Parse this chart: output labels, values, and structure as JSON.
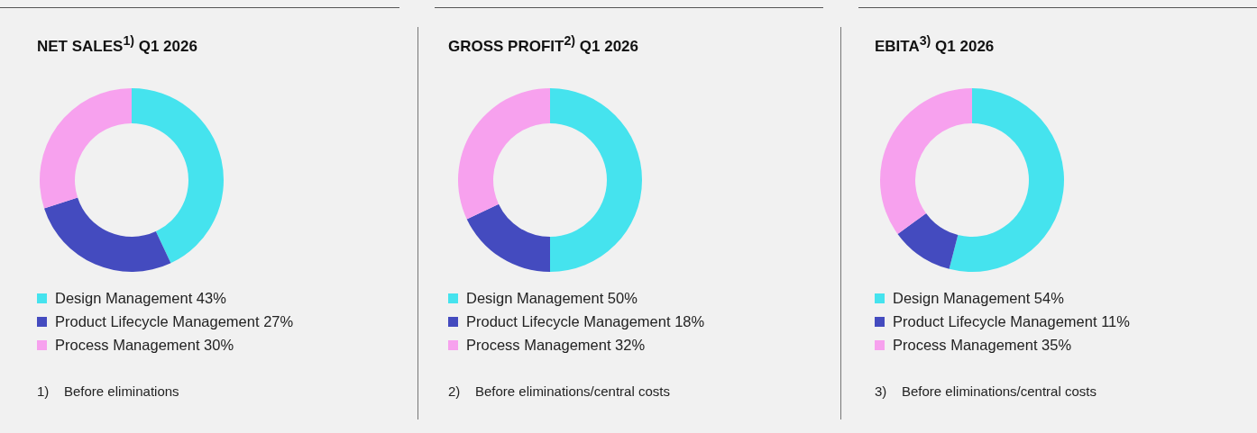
{
  "chart_data": [
    {
      "type": "donut",
      "title": "NET SALES$^{1)}$ Q1 2026",
      "categories": [
        "Design Management",
        "Product Lifecycle Management",
        "Process Management"
      ],
      "values": [
        43,
        27,
        30
      ],
      "value_labels": [
        "43%",
        "27%",
        "30%"
      ],
      "colors": [
        "#45e3ee",
        "#444bbf",
        "#f7a1ee"
      ],
      "legend": "bottom",
      "annotations": [
        "1)    Before eliminations"
      ]
    },
    {
      "type": "donut",
      "title": "GROSS PROFIT$^{2)}$ Q1 2026",
      "categories": [
        "Design Management",
        "Product Lifecycle Management",
        "Process Management"
      ],
      "values": [
        50,
        18,
        32
      ],
      "value_labels": [
        "50%",
        "18%",
        "32%"
      ],
      "colors": [
        "#45e3ee",
        "#444bbf",
        "#f7a1ee"
      ],
      "legend": "bottom",
      "annotations": [
        "2)    Before eliminations/central costs"
      ]
    },
    {
      "type": "donut",
      "title": "EBITA$^{3)}$ Q1 2026",
      "categories": [
        "Design Management",
        "Product Lifecycle Management",
        "Process Management"
      ],
      "values": [
        54,
        11,
        35
      ],
      "value_labels": [
        "54%",
        "11%",
        "35%"
      ],
      "colors": [
        "#45e3ee",
        "#444bbf",
        "#f7a1ee"
      ],
      "legend": "bottom",
      "annotations": [
        "3)    Before eliminations/central costs"
      ]
    }
  ]
}
